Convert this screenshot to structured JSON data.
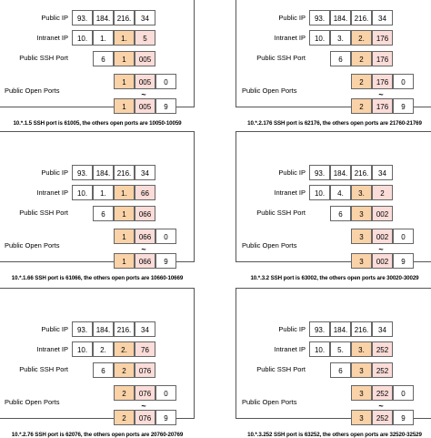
{
  "labels": {
    "public_ip": "Public IP",
    "intranet_ip": "Intranet IP",
    "ssh_port": "Public SSH Port",
    "open_ports": "Public Open Ports",
    "tilde": "~"
  },
  "colors": {
    "orange": "#f9d2a8",
    "pink": "#fadcd8",
    "white": "#ffffff",
    "border": "#666666"
  },
  "panels": [
    {
      "public_ip": [
        "93.",
        "184.",
        "216.",
        "34"
      ],
      "intranet_ip": [
        "10.",
        "1.",
        "1.",
        "5"
      ],
      "ssh": [
        "6",
        "1",
        "005"
      ],
      "range_start": [
        "1",
        "005",
        "0"
      ],
      "range_end": [
        "1",
        "005",
        "9"
      ],
      "caption": "10.*.1.5 SSH port is 61005, the others open ports are 10050-10059"
    },
    {
      "public_ip": [
        "93.",
        "184.",
        "216.",
        "34"
      ],
      "intranet_ip": [
        "10.",
        "3.",
        "2.",
        "176"
      ],
      "ssh": [
        "6",
        "2",
        "176"
      ],
      "range_start": [
        "2",
        "176",
        "0"
      ],
      "range_end": [
        "2",
        "176",
        "9"
      ],
      "caption": "10.*.2.176 SSH port is 62176, the others open ports are 21760-21769"
    },
    {
      "public_ip": [
        "93.",
        "184.",
        "216.",
        "34"
      ],
      "intranet_ip": [
        "10.",
        "1.",
        "1.",
        "66"
      ],
      "ssh": [
        "6",
        "1",
        "066"
      ],
      "range_start": [
        "1",
        "066",
        "0"
      ],
      "range_end": [
        "1",
        "066",
        "9"
      ],
      "caption": "10.*.1.66 SSH port is 61066, the others open ports are 10660-10669"
    },
    {
      "public_ip": [
        "93.",
        "184.",
        "216.",
        "34"
      ],
      "intranet_ip": [
        "10.",
        "4.",
        "3.",
        "2"
      ],
      "ssh": [
        "6",
        "3",
        "002"
      ],
      "range_start": [
        "3",
        "002",
        "0"
      ],
      "range_end": [
        "3",
        "002",
        "9"
      ],
      "caption": "10.*.3.2 SSH port is 63002, the others open ports are 30020-30029"
    },
    {
      "public_ip": [
        "93.",
        "184.",
        "216.",
        "34"
      ],
      "intranet_ip": [
        "10.",
        "2.",
        "2.",
        "76"
      ],
      "ssh": [
        "6",
        "2",
        "076"
      ],
      "range_start": [
        "2",
        "076",
        "0"
      ],
      "range_end": [
        "2",
        "076",
        "9"
      ],
      "caption": "10.*.2.76 SSH port is 62076, the others open ports are 20760-20769"
    },
    {
      "public_ip": [
        "93.",
        "184.",
        "216.",
        "34"
      ],
      "intranet_ip": [
        "10.",
        "5.",
        "3.",
        "252"
      ],
      "ssh": [
        "6",
        "3",
        "252"
      ],
      "range_start": [
        "3",
        "252",
        "0"
      ],
      "range_end": [
        "3",
        "252",
        "9"
      ],
      "caption": "10.*.3.252 SSH port is 63252, the others open ports are 32520-32529"
    }
  ]
}
